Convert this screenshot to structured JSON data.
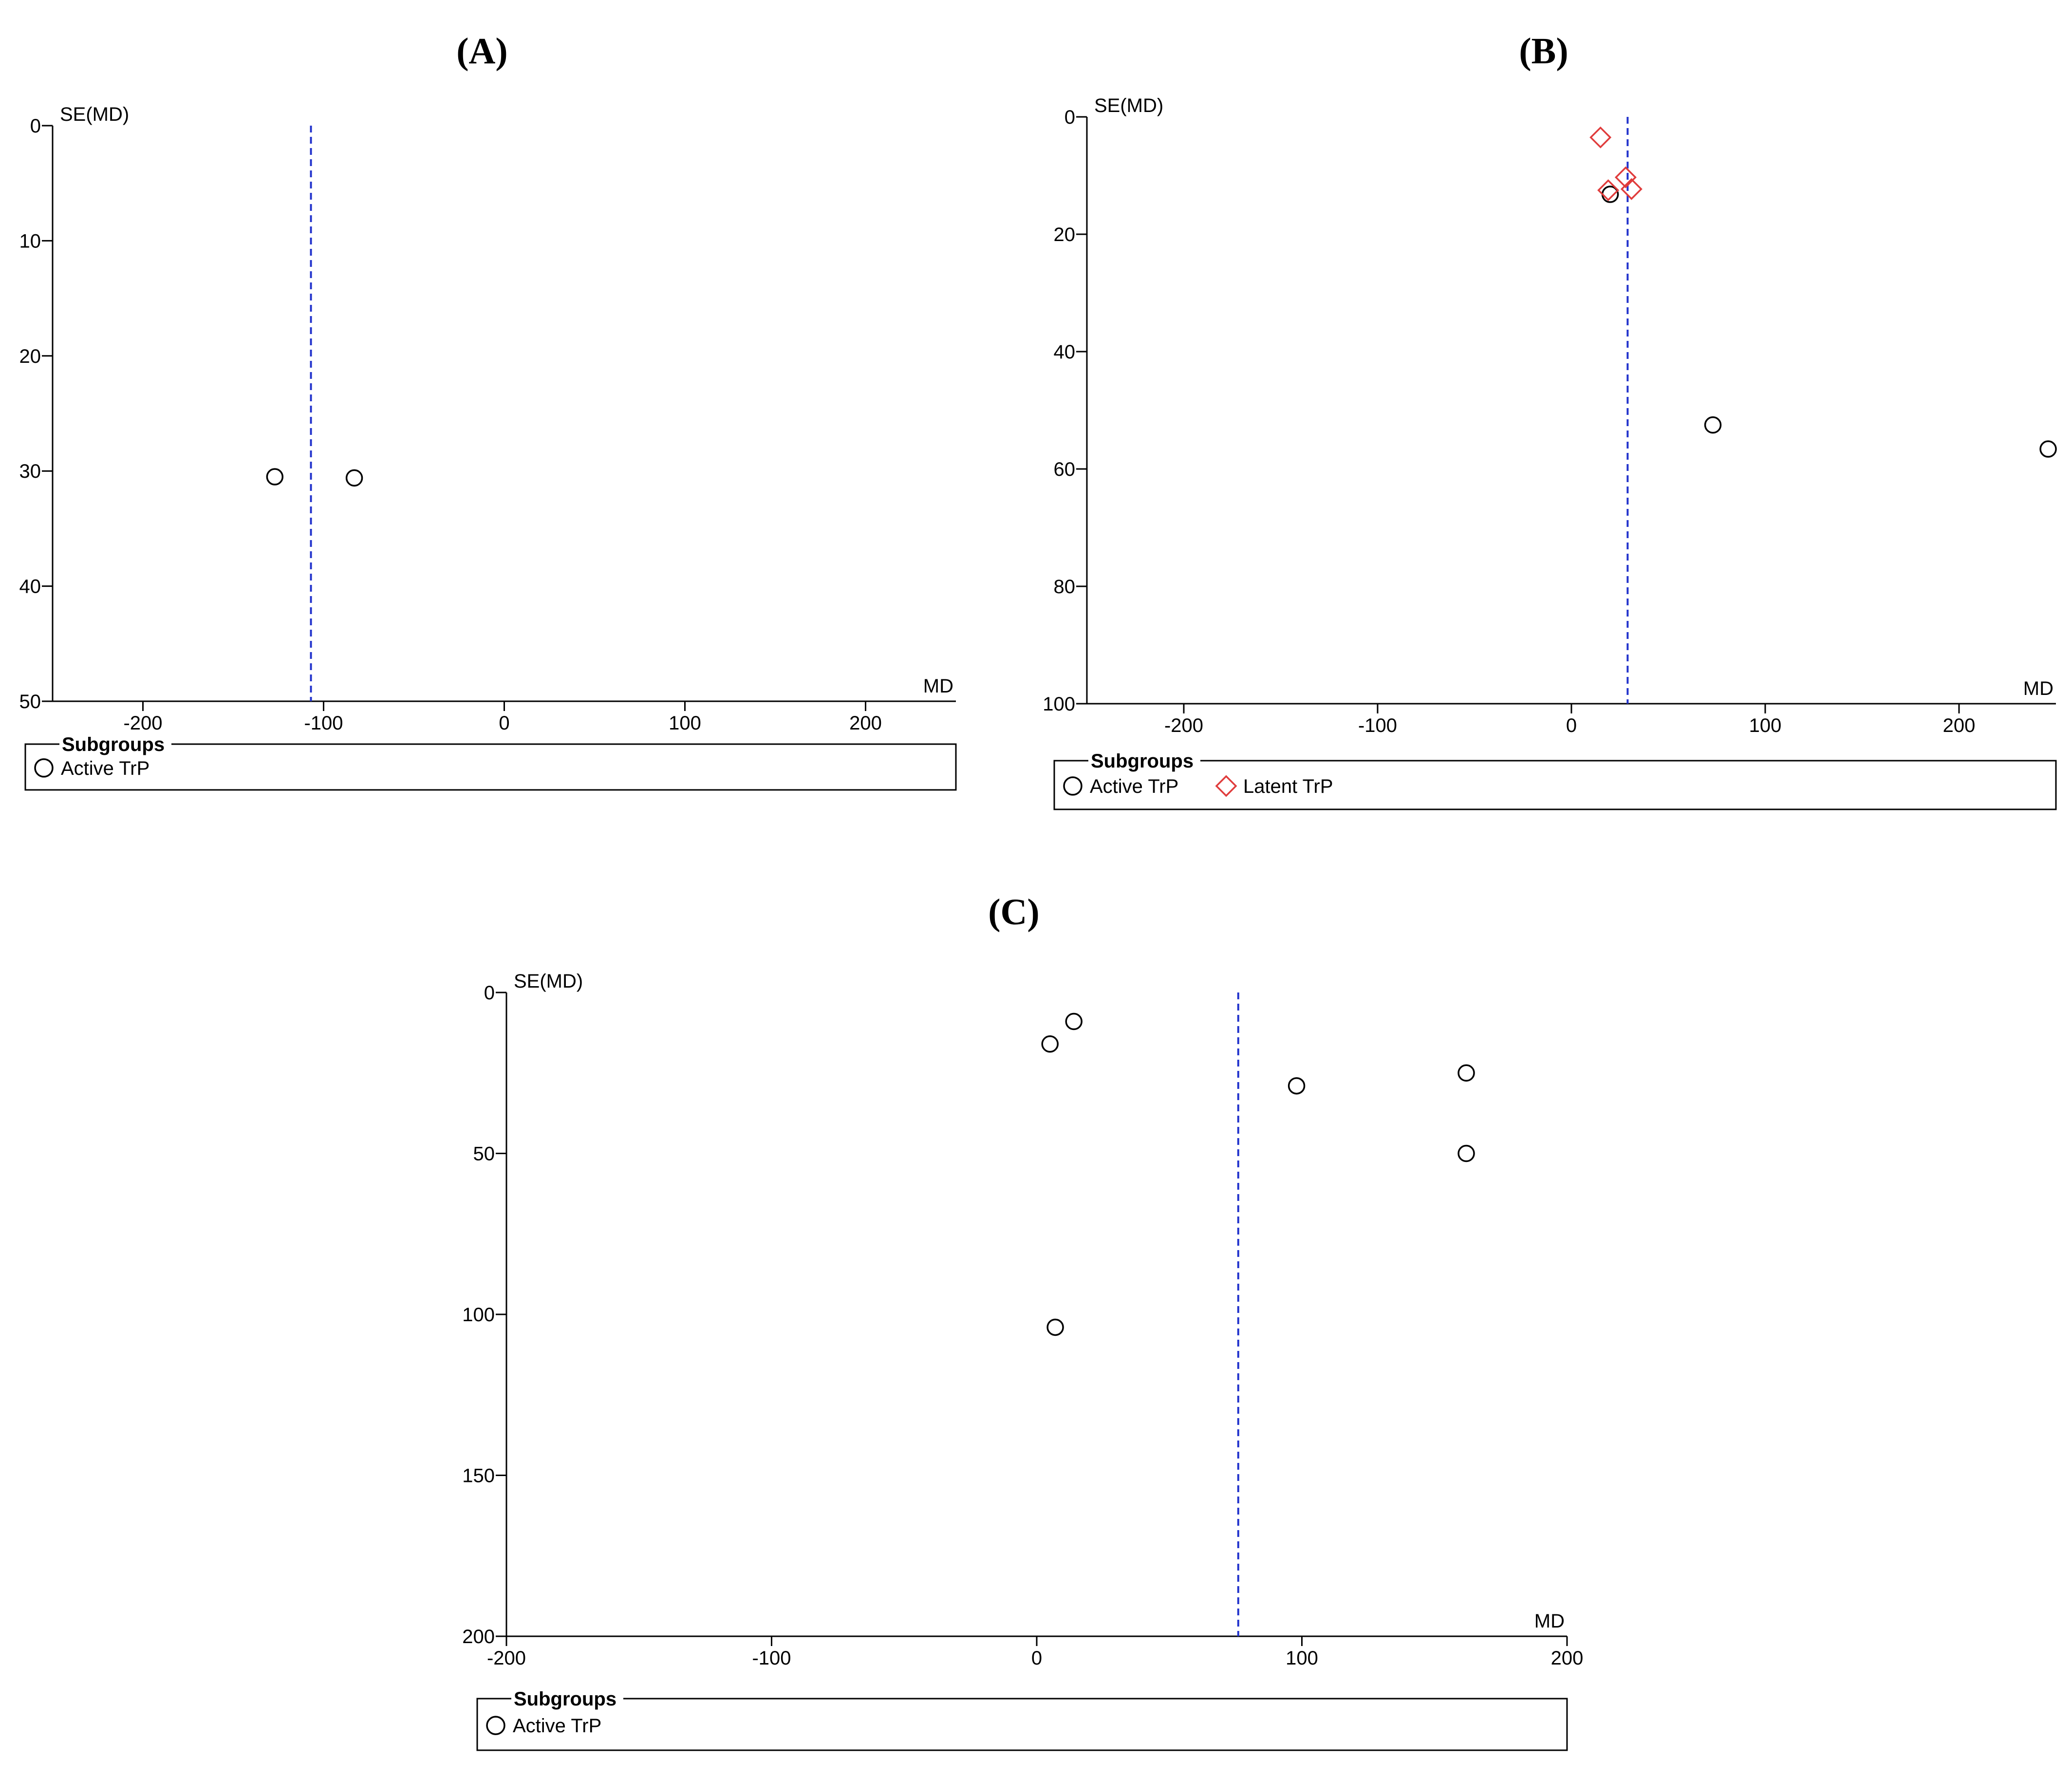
{
  "chart_data": [
    {
      "type": "scatter",
      "panel": "A",
      "title": "(A)",
      "xlabel": "MD",
      "ylabel": "SE(MD)",
      "xlim": [
        -250,
        250
      ],
      "ylim": [
        0,
        50
      ],
      "y_reversed": true,
      "xticks": [
        -200,
        -100,
        0,
        100,
        200
      ],
      "yticks": [
        0,
        10,
        20,
        30,
        40,
        50
      ],
      "pooled_estimate": -107,
      "legend_title": "Subgroups",
      "legend": [
        {
          "name": "Active TrP",
          "marker": "circle",
          "color": "#000000"
        }
      ],
      "series": [
        {
          "name": "Active TrP",
          "marker": "circle",
          "color": "#000000",
          "points": [
            {
              "x": -127,
              "y": 30.5
            },
            {
              "x": -83,
              "y": 30.6
            }
          ]
        }
      ]
    },
    {
      "type": "scatter",
      "panel": "B",
      "title": "(B)",
      "xlabel": "MD",
      "ylabel": "SE(MD)",
      "xlim": [
        -250,
        250
      ],
      "ylim": [
        0,
        100
      ],
      "y_reversed": true,
      "xticks": [
        -200,
        -100,
        0,
        100,
        200
      ],
      "yticks": [
        0,
        20,
        40,
        60,
        80,
        100
      ],
      "pooled_estimate": 29,
      "legend_title": "Subgroups",
      "legend": [
        {
          "name": "Active TrP",
          "marker": "circle",
          "color": "#000000"
        },
        {
          "name": "Latent TrP",
          "marker": "diamond",
          "color": "#e03c3c"
        }
      ],
      "series": [
        {
          "name": "Active TrP",
          "marker": "circle",
          "color": "#000000",
          "points": [
            {
              "x": 20,
              "y": 13.2
            },
            {
              "x": 73,
              "y": 52.5
            },
            {
              "x": 246,
              "y": 56.6
            }
          ]
        },
        {
          "name": "Latent TrP",
          "marker": "diamond",
          "color": "#e03c3c",
          "points": [
            {
              "x": 15,
              "y": 3.5
            },
            {
              "x": 19,
              "y": 12.5
            },
            {
              "x": 28,
              "y": 10.3
            },
            {
              "x": 31,
              "y": 12.3
            }
          ]
        }
      ]
    },
    {
      "type": "scatter",
      "panel": "C",
      "title": "(C)",
      "xlabel": "MD",
      "ylabel": "SE(MD)",
      "xlim": [
        -200,
        200
      ],
      "ylim": [
        0,
        200
      ],
      "y_reversed": true,
      "xticks": [
        -200,
        -100,
        0,
        100,
        200
      ],
      "yticks": [
        0,
        50,
        100,
        150,
        200
      ],
      "pooled_estimate": 76,
      "legend_title": "Subgroups",
      "legend": [
        {
          "name": "Active TrP",
          "marker": "circle",
          "color": "#000000"
        }
      ],
      "series": [
        {
          "name": "Active TrP",
          "marker": "circle",
          "color": "#000000",
          "points": [
            {
              "x": 14,
              "y": 9
            },
            {
              "x": 5,
              "y": 16
            },
            {
              "x": 98,
              "y": 29
            },
            {
              "x": 162,
              "y": 25
            },
            {
              "x": 162,
              "y": 50
            },
            {
              "x": 7,
              "y": 104
            }
          ]
        }
      ]
    }
  ],
  "colors": {
    "axis": "#000000",
    "pooled_line": "#2233cc",
    "active": "#000000",
    "latent": "#e03c3c"
  }
}
